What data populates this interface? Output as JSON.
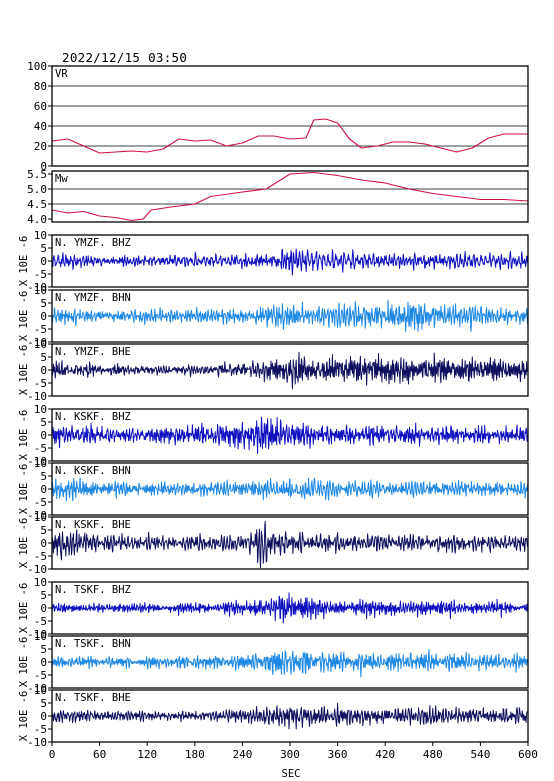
{
  "header": {
    "datetime": "2022/12/15  03:50"
  },
  "chart_data": {
    "type": "line",
    "xlabel": "SEC",
    "xlim": [
      0,
      600
    ],
    "xticks": [
      0,
      60,
      120,
      180,
      240,
      300,
      360,
      420,
      480,
      540,
      600
    ],
    "y_axis_side_label": "X 10E -6",
    "panels": [
      {
        "id": "vr",
        "label": "VR",
        "ylim": [
          0,
          100
        ],
        "yticks": [
          0,
          20,
          40,
          60,
          80,
          100
        ],
        "grid": true,
        "color": "#d01040",
        "x": [
          0,
          20,
          40,
          60,
          80,
          100,
          120,
          140,
          160,
          180,
          200,
          220,
          240,
          260,
          280,
          300,
          320,
          330,
          345,
          360,
          375,
          390,
          410,
          430,
          450,
          470,
          490,
          510,
          530,
          550,
          570,
          600
        ],
        "values": [
          25,
          27,
          20,
          13,
          14,
          15,
          14,
          17,
          27,
          25,
          26,
          20,
          23,
          30,
          30,
          27,
          28,
          46,
          47,
          43,
          27,
          18,
          20,
          24,
          24,
          22,
          18,
          14,
          18,
          28,
          32,
          32
        ]
      },
      {
        "id": "mw",
        "label": "Mw",
        "ylim": [
          3.9,
          5.6
        ],
        "yticks": [
          4.0,
          4.5,
          5.0,
          5.5
        ],
        "yticklabels": [
          "4.0",
          "4.5",
          "5.0",
          "5.5"
        ],
        "grid": true,
        "color": "#d01040",
        "x": [
          0,
          20,
          40,
          60,
          80,
          100,
          115,
          125,
          150,
          180,
          200,
          240,
          270,
          300,
          330,
          360,
          390,
          420,
          450,
          480,
          510,
          540,
          570,
          600
        ],
        "values": [
          4.3,
          4.2,
          4.25,
          4.1,
          4.05,
          3.95,
          4.0,
          4.3,
          4.4,
          4.5,
          4.75,
          4.9,
          5.0,
          5.5,
          5.55,
          5.45,
          5.3,
          5.2,
          5.0,
          4.85,
          4.75,
          4.65,
          4.65,
          4.6
        ]
      },
      {
        "id": "ymzf-bhz",
        "label": "N. YMZF. BHZ",
        "ylim": [
          -10,
          10
        ],
        "yticks": [
          -10,
          -5,
          0,
          5,
          10
        ],
        "color": "#1010c0",
        "seed": 11,
        "amp": 1.0,
        "envelope": {
          "x": [
            0,
            30,
            60,
            120,
            180,
            240,
            270,
            300,
            330,
            360,
            420,
            480,
            540,
            600
          ],
          "values": [
            2.2,
            2.0,
            1.7,
            1.7,
            1.9,
            2.0,
            2.4,
            3.8,
            3.0,
            2.8,
            2.6,
            2.5,
            2.3,
            2.2
          ]
        }
      },
      {
        "id": "ymzf-bhn",
        "label": "N. YMZF. BHN",
        "ylim": [
          -10,
          10
        ],
        "yticks": [
          -10,
          -5,
          0,
          5,
          10
        ],
        "color": "#1e88e5",
        "seed": 23,
        "amp": 1.0,
        "envelope": {
          "x": [
            0,
            30,
            60,
            120,
            180,
            240,
            270,
            300,
            330,
            360,
            420,
            460,
            480,
            540,
            600
          ],
          "values": [
            2.6,
            2.4,
            1.9,
            1.9,
            2.0,
            2.3,
            3.2,
            3.5,
            3.0,
            3.3,
            4.0,
            5.5,
            3.4,
            2.8,
            2.6
          ]
        }
      },
      {
        "id": "ymzf-bhe",
        "label": "N. YMZF. BHE",
        "ylim": [
          -10,
          10
        ],
        "yticks": [
          -10,
          -5,
          0,
          5,
          10
        ],
        "color": "#101060",
        "seed": 37,
        "amp": 1.0,
        "envelope": {
          "x": [
            0,
            30,
            60,
            120,
            180,
            240,
            270,
            300,
            330,
            360,
            420,
            480,
            540,
            600
          ],
          "values": [
            2.8,
            2.5,
            1.9,
            1.9,
            2.1,
            3.0,
            3.5,
            5.2,
            3.8,
            4.2,
            4.0,
            3.6,
            3.4,
            3.0
          ]
        }
      },
      {
        "id": "kskf-bhz",
        "label": "N. KSKF. BHZ",
        "ylim": [
          -10,
          10
        ],
        "yticks": [
          -10,
          -5,
          0,
          5,
          10
        ],
        "color": "#1010c0",
        "seed": 41,
        "amp": 1.0,
        "envelope": {
          "x": [
            0,
            30,
            60,
            120,
            180,
            240,
            260,
            280,
            300,
            330,
            360,
            420,
            480,
            540,
            600
          ],
          "values": [
            3.0,
            2.8,
            2.2,
            2.0,
            2.5,
            3.5,
            5.8,
            4.8,
            3.5,
            3.0,
            2.7,
            2.6,
            2.5,
            2.3,
            2.2
          ]
        }
      },
      {
        "id": "kskf-bhn",
        "label": "N. KSKF. BHN",
        "ylim": [
          -10,
          10
        ],
        "yticks": [
          -10,
          -5,
          0,
          5,
          10
        ],
        "color": "#1e88e5",
        "seed": 53,
        "amp": 1.0,
        "envelope": {
          "x": [
            0,
            30,
            60,
            120,
            180,
            240,
            270,
            300,
            330,
            360,
            420,
            480,
            540,
            600
          ],
          "values": [
            4.0,
            3.5,
            2.5,
            2.2,
            2.4,
            3.0,
            3.5,
            4.2,
            4.8,
            3.8,
            3.2,
            3.0,
            2.6,
            2.4
          ]
        }
      },
      {
        "id": "kskf-bhe",
        "label": "N. KSKF. BHE",
        "ylim": [
          -10,
          10
        ],
        "yticks": [
          -10,
          -5,
          0,
          5,
          10
        ],
        "color": "#101060",
        "seed": 67,
        "amp": 1.0,
        "envelope": {
          "x": [
            0,
            15,
            40,
            60,
            120,
            180,
            240,
            262,
            280,
            300,
            330,
            360,
            420,
            480,
            540,
            600
          ],
          "values": [
            6.0,
            5.0,
            3.5,
            2.5,
            2.2,
            2.2,
            2.8,
            6.5,
            4.0,
            3.0,
            2.7,
            2.6,
            2.6,
            2.5,
            2.4,
            2.3
          ]
        }
      },
      {
        "id": "tskf-bhz",
        "label": "N. TSKF. BHZ",
        "ylim": [
          -10,
          10
        ],
        "yticks": [
          -10,
          -5,
          0,
          5,
          10
        ],
        "color": "#1010c0",
        "seed": 71,
        "amp": 1.0,
        "envelope": {
          "x": [
            0,
            60,
            120,
            180,
            240,
            270,
            300,
            330,
            360,
            420,
            480,
            540,
            600
          ],
          "values": [
            1.3,
            1.3,
            1.4,
            1.6,
            2.2,
            3.0,
            5.5,
            3.0,
            2.6,
            2.4,
            2.3,
            2.0,
            1.8
          ]
        }
      },
      {
        "id": "tskf-bhn",
        "label": "N. TSKF. BHN",
        "ylim": [
          -10,
          10
        ],
        "yticks": [
          -10,
          -5,
          0,
          5,
          10
        ],
        "color": "#1e88e5",
        "seed": 83,
        "amp": 1.0,
        "envelope": {
          "x": [
            0,
            60,
            120,
            180,
            240,
            270,
            290,
            320,
            360,
            420,
            480,
            540,
            600
          ],
          "values": [
            1.5,
            1.4,
            1.5,
            1.7,
            2.0,
            2.8,
            4.0,
            3.2,
            2.7,
            2.5,
            2.4,
            2.1,
            2.0
          ]
        }
      },
      {
        "id": "tskf-bhe",
        "label": "N. TSKF. BHE",
        "ylim": [
          -10,
          10
        ],
        "yticks": [
          -10,
          -5,
          0,
          5,
          10
        ],
        "color": "#101060",
        "seed": 97,
        "amp": 1.0,
        "envelope": {
          "x": [
            0,
            40,
            60,
            120,
            180,
            240,
            270,
            300,
            330,
            360,
            420,
            480,
            540,
            600
          ],
          "values": [
            2.2,
            2.0,
            1.6,
            1.6,
            1.8,
            2.2,
            3.0,
            5.0,
            3.2,
            2.8,
            2.8,
            3.0,
            2.6,
            2.4
          ]
        }
      }
    ]
  }
}
